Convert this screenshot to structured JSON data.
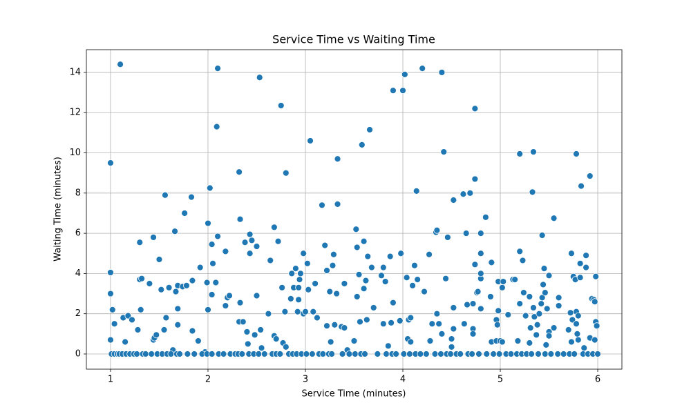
{
  "chart_data": {
    "type": "scatter",
    "title": "Service Time vs Waiting Time",
    "x_label": "Service Time (minutes)",
    "y_label": "Waiting Time (minutes)",
    "color": "#1f77b4",
    "grid": true,
    "xlim": [
      0.752,
      6.248
    ],
    "ylim": [
      -0.755,
      15.13
    ],
    "xticks": [
      1,
      2,
      3,
      4,
      5,
      6
    ],
    "yticks": [
      0,
      2,
      4,
      6,
      8,
      10,
      12,
      14
    ],
    "x": [
      1.0,
      1.0,
      1.0,
      1.0,
      1.02,
      1.04,
      1.1,
      1.13,
      1.15,
      1.18,
      1.22,
      1.28,
      1.3,
      1.32,
      1.3,
      1.31,
      1.4,
      1.44,
      1.45,
      1.44,
      1.47,
      1.5,
      1.52,
      1.55,
      1.56,
      1.57,
      1.6,
      1.64,
      1.66,
      1.67,
      1.69,
      1.69,
      1.69,
      1.74,
      1.76,
      1.78,
      1.83,
      1.84,
      1.84,
      1.9,
      1.92,
      1.97,
      1.99,
      2.0,
      2.0,
      2.02,
      2.04,
      2.04,
      2.05,
      2.08,
      2.09,
      2.1,
      2.1,
      2.18,
      2.18,
      2.2,
      2.22,
      2.32,
      2.33,
      2.33,
      2.32,
      2.36,
      2.38,
      2.4,
      2.41,
      2.43,
      2.43,
      2.45,
      2.48,
      2.5,
      2.5,
      2.53,
      2.54,
      2.55,
      2.62,
      2.64,
      2.68,
      2.68,
      2.7,
      2.72,
      2.75,
      2.76,
      2.77,
      2.8,
      2.79,
      2.8,
      2.85,
      2.86,
      2.88,
      2.9,
      2.92,
      2.93,
      2.93,
      2.94,
      2.95,
      2.98,
      2.98,
      3.0,
      3.02,
      3.03,
      3.05,
      3.08,
      3.1,
      3.12,
      3.17,
      3.2,
      3.22,
      3.22,
      3.25,
      3.26,
      3.28,
      3.29,
      3.3,
      3.32,
      3.33,
      3.33,
      3.37,
      3.4,
      3.4,
      3.43,
      3.5,
      3.52,
      3.53,
      3.53,
      3.55,
      3.56,
      3.58,
      3.6,
      3.6,
      3.62,
      3.63,
      3.64,
      3.66,
      3.68,
      3.7,
      3.78,
      3.8,
      3.8,
      3.82,
      3.85,
      3.87,
      3.88,
      3.9,
      3.9,
      3.97,
      3.98,
      4.0,
      4.02,
      4.04,
      4.05,
      4.06,
      4.08,
      4.08,
      4.1,
      4.12,
      4.14,
      4.15,
      4.2,
      4.22,
      4.27,
      4.28,
      4.3,
      4.34,
      4.35,
      4.35,
      4.37,
      4.4,
      4.4,
      4.42,
      4.44,
      4.46,
      4.5,
      4.5,
      4.52,
      4.52,
      4.52,
      4.62,
      4.63,
      4.65,
      4.66,
      4.69,
      4.72,
      4.72,
      4.72,
      4.74,
      4.74,
      4.74,
      4.76,
      4.77,
      4.8,
      4.8,
      4.8,
      4.8,
      4.8,
      4.85,
      4.9,
      4.91,
      4.91,
      4.96,
      4.96,
      4.97,
      4.98,
      4.98,
      5.0,
      5.02,
      5.03,
      5.02,
      5.08,
      5.13,
      5.15,
      5.18,
      5.2,
      5.2,
      5.2,
      5.23,
      5.24,
      5.26,
      5.3,
      5.3,
      5.31,
      5.33,
      5.34,
      5.34,
      5.35,
      5.37,
      5.38,
      5.4,
      5.42,
      5.43,
      5.43,
      5.44,
      5.45,
      5.46,
      5.47,
      5.48,
      5.5,
      5.5,
      5.5,
      5.55,
      5.55,
      5.6,
      5.6,
      5.7,
      5.72,
      5.73,
      5.73,
      5.74,
      5.75,
      5.77,
      5.78,
      5.78,
      5.78,
      5.79,
      5.8,
      5.8,
      5.82,
      5.82,
      5.83,
      5.88,
      5.88,
      5.92,
      5.92,
      5.94,
      5.96,
      5.97,
      5.97,
      5.98,
      5.98,
      5.99,
      5.86,
      1.01,
      1.04,
      1.07,
      1.09,
      1.12,
      1.16,
      1.2,
      1.24,
      1.27,
      1.33,
      1.36,
      1.42,
      1.48,
      1.53,
      1.58,
      1.62,
      1.68,
      1.71,
      1.79,
      1.86,
      1.94,
      1.99,
      2.04,
      2.11,
      2.16,
      2.23,
      2.28,
      2.31,
      2.35,
      2.42,
      2.47,
      2.52,
      2.58,
      2.66,
      2.7,
      2.74,
      2.83,
      2.87,
      2.91,
      2.96,
      3.01,
      3.07,
      3.14,
      3.18,
      3.24,
      3.27,
      3.38,
      3.45,
      3.51,
      3.57,
      3.61,
      3.74,
      3.83,
      3.89,
      3.93,
      4.01,
      4.07,
      4.13,
      4.18,
      4.24,
      4.33,
      4.39,
      4.45,
      4.49,
      4.55,
      4.59,
      4.67,
      4.71,
      4.78,
      4.86,
      4.93,
      4.99,
      5.06,
      5.11,
      5.17,
      5.22,
      5.27,
      5.32,
      5.39,
      5.46,
      5.52,
      5.59,
      5.65,
      5.71,
      5.76,
      5.85,
      5.9,
      5.95,
      6.0
    ],
    "y": [
      9.5,
      4.05,
      3.0,
      0.7,
      2.2,
      1.5,
      14.4,
      1.8,
      0.6,
      1.9,
      1.7,
      1.2,
      3.7,
      3.75,
      5.55,
      2.2,
      3.5,
      0.7,
      0.8,
      5.8,
      0.95,
      4.7,
      3.2,
      1.2,
      7.9,
      1.8,
      3.3,
      0.2,
      6.1,
      3.1,
      3.4,
      2.25,
      1.45,
      3.35,
      7.0,
      3.4,
      7.8,
      3.65,
      1.15,
      0.65,
      4.3,
      0.1,
      3.55,
      2.2,
      6.5,
      8.25,
      2.95,
      5.45,
      4.5,
      3.55,
      11.3,
      14.2,
      5.85,
      5.1,
      2.4,
      2.8,
      2.9,
      9.05,
      6.7,
      2.55,
      1.6,
      1.6,
      5.55,
      1.1,
      0.5,
      5.0,
      5.95,
      5.65,
      0.95,
      5.35,
      2.9,
      13.75,
      1.2,
      0.3,
      2.0,
      4.65,
      6.3,
      0.9,
      0.75,
      5.6,
      12.35,
      3.3,
      0.55,
      0.35,
      2.1,
      9.0,
      2.75,
      4.0,
      3.3,
      4.25,
      2.1,
      3.3,
      2.7,
      3.7,
      4.0,
      5.0,
      2.0,
      2.1,
      4.5,
      3.2,
      10.6,
      2.1,
      3.5,
      1.8,
      7.4,
      5.4,
      4.15,
      1.4,
      3.1,
      0.6,
      4.4,
      4.95,
      1.45,
      3.0,
      9.7,
      7.45,
      1.35,
      3.5,
      1.3,
      0.2,
      0.65,
      6.2,
      5.3,
      2.85,
      3.95,
      1.6,
      10.4,
      5.6,
      3.25,
      3.65,
      1.7,
      4.85,
      11.15,
      4.3,
      2.3,
      3.9,
      4.3,
      1.5,
      3.6,
      0.4,
      4.85,
      1.55,
      13.1,
      2.55,
      1.65,
      5.0,
      13.1,
      13.9,
      3.8,
      0.75,
      1.7,
      0.6,
      1.8,
      3.4,
      4.4,
      8.1,
      3.7,
      14.2,
      3.1,
      4.95,
      0.65,
      1.5,
      6.05,
      6.15,
      2.0,
      1.5,
      1.0,
      14.0,
      10.05,
      3.75,
      5.8,
      0.75,
      0.35,
      7.65,
      2.3,
      1.25,
      7.95,
      1.5,
      6.0,
      2.45,
      8.0,
      2.5,
      1.25,
      1.0,
      12.2,
      8.7,
      4.45,
      3.05,
      3.1,
      3.75,
      6.0,
      5.0,
      4.0,
      2.25,
      6.8,
      2.85,
      4.55,
      0.6,
      0.65,
      1.7,
      1.45,
      2.15,
      3.6,
      0.65,
      3.3,
      3.6,
      0.6,
      1.95,
      3.7,
      3.7,
      0.65,
      5.1,
      9.95,
      2.5,
      4.65,
      3.05,
      1.9,
      2.85,
      0.55,
      1.3,
      8.05,
      10.05,
      2.3,
      1.85,
      0.95,
      1.45,
      2.0,
      2.5,
      2.8,
      5.9,
      3.45,
      4.25,
      3.05,
      0.45,
      2.25,
      3.9,
      1.1,
      0.9,
      6.75,
      1.3,
      2.4,
      2.8,
      1.2,
      2.05,
      5.0,
      0.6,
      1.7,
      3.85,
      3.7,
      9.95,
      1.5,
      2.1,
      1.0,
      1.9,
      0.7,
      3.8,
      4.5,
      8.35,
      4.3,
      4.9,
      8.85,
      0.8,
      2.75,
      2.7,
      0.7,
      2.6,
      3.85,
      1.6,
      1.4,
      0.3,
      0,
      0,
      0,
      0,
      0,
      0,
      0,
      0,
      0,
      0,
      0,
      0,
      0,
      0,
      0,
      0,
      0,
      0,
      0,
      0,
      0,
      0,
      0,
      0,
      0,
      0,
      0,
      0,
      0,
      0,
      0,
      0,
      0,
      0,
      0,
      0,
      0,
      0,
      0,
      0,
      0,
      0,
      0,
      0,
      0,
      0,
      0,
      0,
      0,
      0,
      0,
      0,
      0,
      0,
      0,
      0,
      0,
      0,
      0,
      0,
      0,
      0,
      0,
      0,
      0,
      0,
      0,
      0,
      0,
      0,
      0,
      0,
      0,
      0,
      0,
      0,
      0,
      0,
      0,
      0,
      0,
      0,
      0,
      0,
      0,
      0,
      0,
      0,
      0
    ]
  }
}
